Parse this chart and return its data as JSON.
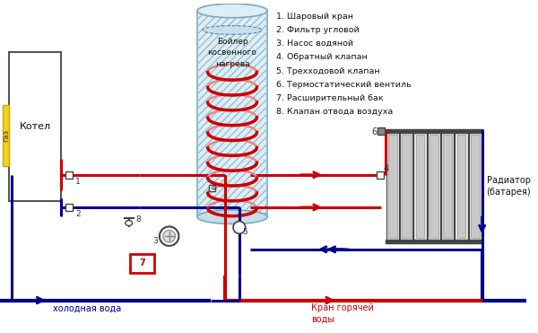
{
  "bg_color": "#ffffff",
  "boiler_label": "Бойлер\nкосвенного\nнагрева",
  "kotel_label": "Котел",
  "gaz_label": "газ",
  "cold_water_label": "холодная вода",
  "hot_water_label": "Кран горячей\nводы",
  "radiator_label": "Радиатор\n(батарея)",
  "legend": [
    "1. Шаровый кран",
    "2. Фильтр угловой",
    "3. Насос водяной",
    "4. Обратный клапан",
    "5. Трехходовой клапан",
    "6. Термостатический вентиль",
    "7. Расширительный бак",
    "8. Клапан отвода воздуха"
  ],
  "RED": "#cc0000",
  "BLUE": "#00008b",
  "YELLOW": "#f5d020",
  "GRAY": "#888888",
  "DGRAY": "#444444",
  "LGRAY": "#dddddd",
  "MGRAY": "#bbbbbb"
}
